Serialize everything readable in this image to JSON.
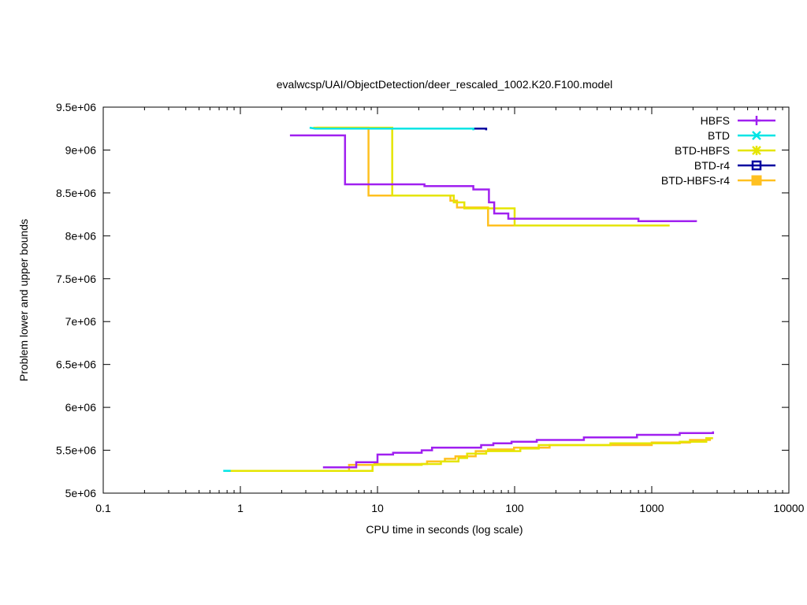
{
  "chart_data": {
    "type": "line",
    "title": "evalwcsp/UAI/ObjectDetection/deer_rescaled_1002.K20.F100.model",
    "xlabel": "CPU time in seconds (log scale)",
    "ylabel": "Problem lower and upper bounds",
    "x_scale": "log",
    "xlim": [
      0.1,
      10000
    ],
    "ylim": [
      5000000,
      9500000
    ],
    "x_ticks": [
      {
        "value": 0.1,
        "label": "0.1"
      },
      {
        "value": 1,
        "label": "1"
      },
      {
        "value": 10,
        "label": "10"
      },
      {
        "value": 100,
        "label": "100"
      },
      {
        "value": 1000,
        "label": "1000"
      },
      {
        "value": 10000,
        "label": "10000"
      }
    ],
    "y_ticks": [
      {
        "value": 5000000,
        "label": "5e+06"
      },
      {
        "value": 5500000,
        "label": "5.5e+06"
      },
      {
        "value": 6000000,
        "label": "6e+06"
      },
      {
        "value": 6500000,
        "label": "6.5e+06"
      },
      {
        "value": 7000000,
        "label": "7e+06"
      },
      {
        "value": 7500000,
        "label": "7.5e+06"
      },
      {
        "value": 8000000,
        "label": "8e+06"
      },
      {
        "value": 8500000,
        "label": "8.5e+06"
      },
      {
        "value": 9000000,
        "label": "9e+06"
      },
      {
        "value": 9500000,
        "label": "9.5e+06"
      }
    ],
    "grid": false,
    "legend_position": "top-right",
    "series": [
      {
        "name": "HBFS",
        "color": "#a020f0",
        "marker": "plus",
        "segments": [
          [
            [
              2.3,
              9170000
            ],
            [
              5.8,
              9170000
            ],
            [
              5.8,
              8600000
            ],
            [
              22,
              8600000
            ],
            [
              22,
              8580000
            ],
            [
              50,
              8580000
            ],
            [
              50,
              8540000
            ],
            [
              65,
              8540000
            ],
            [
              65,
              8390000
            ],
            [
              71,
              8390000
            ],
            [
              71,
              8260000
            ],
            [
              90,
              8260000
            ],
            [
              90,
              8200000
            ],
            [
              800,
              8200000
            ],
            [
              800,
              8170000
            ],
            [
              2100,
              8170000
            ],
            [
              2100,
              8160000
            ]
          ],
          [
            [
              4,
              5300000
            ],
            [
              7,
              5300000
            ],
            [
              7,
              5360000
            ],
            [
              10,
              5360000
            ],
            [
              10,
              5450000
            ],
            [
              13,
              5450000
            ],
            [
              13,
              5470000
            ],
            [
              21,
              5470000
            ],
            [
              21,
              5500000
            ],
            [
              25,
              5500000
            ],
            [
              25,
              5530000
            ],
            [
              57,
              5530000
            ],
            [
              57,
              5560000
            ],
            [
              70,
              5560000
            ],
            [
              70,
              5580000
            ],
            [
              95,
              5580000
            ],
            [
              95,
              5600000
            ],
            [
              145,
              5600000
            ],
            [
              145,
              5620000
            ],
            [
              320,
              5620000
            ],
            [
              320,
              5650000
            ],
            [
              780,
              5650000
            ],
            [
              780,
              5680000
            ],
            [
              1600,
              5680000
            ],
            [
              1600,
              5700000
            ],
            [
              2800,
              5700000
            ],
            [
              2800,
              5720000
            ]
          ]
        ]
      },
      {
        "name": "BTD",
        "color": "#00e5e5",
        "marker": "x",
        "segments": [
          [
            [
              3.2,
              9260000
            ],
            [
              3.5,
              9250000
            ],
            [
              50,
              9250000
            ],
            [
              50,
              9230000
            ]
          ],
          [
            [
              0.75,
              5260000
            ],
            [
              0.85,
              5260000
            ]
          ]
        ]
      },
      {
        "name": "BTD-HBFS",
        "color": "#e5e500",
        "marker": "star",
        "segments": [
          [
            [
              3.4,
              9260000
            ],
            [
              12.8,
              9260000
            ],
            [
              12.8,
              8470000
            ],
            [
              36,
              8470000
            ],
            [
              36,
              8390000
            ],
            [
              43,
              8390000
            ],
            [
              43,
              8320000
            ],
            [
              100,
              8320000
            ],
            [
              100,
              8120000
            ],
            [
              1350,
              8120000
            ]
          ],
          [
            [
              0.85,
              5260000
            ],
            [
              9.2,
              5260000
            ],
            [
              9.2,
              5330000
            ],
            [
              21,
              5330000
            ],
            [
              21,
              5340000
            ],
            [
              29,
              5340000
            ],
            [
              29,
              5370000
            ],
            [
              39,
              5370000
            ],
            [
              39,
              5410000
            ],
            [
              45,
              5410000
            ],
            [
              45,
              5460000
            ],
            [
              62,
              5460000
            ],
            [
              62,
              5490000
            ],
            [
              110,
              5490000
            ],
            [
              110,
              5520000
            ],
            [
              150,
              5520000
            ],
            [
              150,
              5560000
            ],
            [
              500,
              5560000
            ],
            [
              500,
              5580000
            ],
            [
              1600,
              5580000
            ],
            [
              1600,
              5600000
            ],
            [
              2500,
              5600000
            ],
            [
              2500,
              5640000
            ],
            [
              2800,
              5640000
            ]
          ]
        ]
      },
      {
        "name": "BTD-r4",
        "color": "#0000a0",
        "marker": "square",
        "segments": [
          [
            [
              4,
              9250000
            ],
            [
              62,
              9250000
            ],
            [
              62,
              9230000
            ]
          ]
        ]
      },
      {
        "name": "BTD-HBFS-r4",
        "color": "#ffc020",
        "marker": "filled-square",
        "segments": [
          [
            [
              3.6,
              9260000
            ],
            [
              8.6,
              9260000
            ],
            [
              8.6,
              8470000
            ],
            [
              34,
              8470000
            ],
            [
              34,
              8410000
            ],
            [
              38,
              8410000
            ],
            [
              38,
              8330000
            ],
            [
              64,
              8330000
            ],
            [
              64,
              8120000
            ],
            [
              960,
              8120000
            ]
          ],
          [
            [
              0.8,
              5260000
            ],
            [
              6.2,
              5260000
            ],
            [
              6.2,
              5330000
            ],
            [
              9.5,
              5330000
            ],
            [
              9.5,
              5340000
            ],
            [
              23,
              5340000
            ],
            [
              23,
              5370000
            ],
            [
              31,
              5370000
            ],
            [
              31,
              5400000
            ],
            [
              37,
              5400000
            ],
            [
              37,
              5430000
            ],
            [
              52,
              5430000
            ],
            [
              52,
              5490000
            ],
            [
              64,
              5490000
            ],
            [
              64,
              5510000
            ],
            [
              99,
              5510000
            ],
            [
              99,
              5530000
            ],
            [
              180,
              5530000
            ],
            [
              180,
              5560000
            ],
            [
              1000,
              5560000
            ],
            [
              1000,
              5590000
            ],
            [
              1900,
              5590000
            ],
            [
              1900,
              5620000
            ],
            [
              2700,
              5620000
            ]
          ]
        ]
      }
    ]
  }
}
